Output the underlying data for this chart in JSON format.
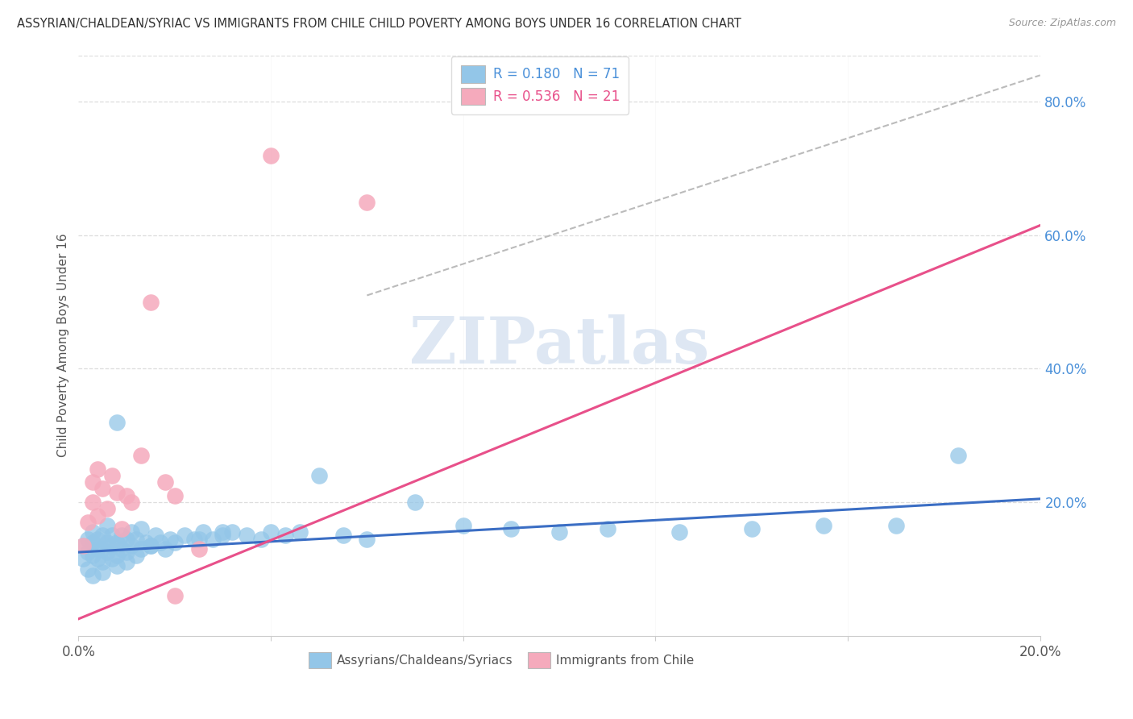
{
  "title": "ASSYRIAN/CHALDEAN/SYRIAC VS IMMIGRANTS FROM CHILE CHILD POVERTY AMONG BOYS UNDER 16 CORRELATION CHART",
  "source": "Source: ZipAtlas.com",
  "ylabel": "Child Poverty Among Boys Under 16",
  "xlim": [
    0.0,
    0.2
  ],
  "ylim": [
    0.0,
    0.87
  ],
  "xtick_vals": [
    0.0,
    0.04,
    0.08,
    0.12,
    0.16,
    0.2
  ],
  "ytick_vals": [
    0.2,
    0.4,
    0.6,
    0.8
  ],
  "blue_R": "0.180",
  "blue_N": "71",
  "pink_R": "0.536",
  "pink_N": "21",
  "blue_color": "#93C6E8",
  "pink_color": "#F5AABC",
  "blue_line_color": "#3B6EC4",
  "pink_line_color": "#E8508A",
  "dash_color": "#BBBBBB",
  "grid_color": "#DDDDDD",
  "watermark_text": "ZIPatlas",
  "watermark_color": "#C8D8EC",
  "right_tick_color": "#4A90D9",
  "legend_label1": "R = 0.180   N = 71",
  "legend_label2": "R = 0.536   N = 21",
  "bottom_label1": "Assyrians/Chaldeans/Syriacs",
  "bottom_label2": "Immigrants from Chile",
  "blue_line_x0": 0.0,
  "blue_line_x1": 0.2,
  "blue_line_y0": 0.125,
  "blue_line_y1": 0.205,
  "pink_line_x0": 0.0,
  "pink_line_x1": 0.2,
  "pink_line_y0": 0.025,
  "pink_line_y1": 0.615,
  "dash_line_x0": 0.06,
  "dash_line_x1": 0.2,
  "dash_line_y0": 0.51,
  "dash_line_y1": 0.84,
  "blue_x": [
    0.001,
    0.001,
    0.002,
    0.002,
    0.002,
    0.003,
    0.003,
    0.003,
    0.003,
    0.004,
    0.004,
    0.004,
    0.005,
    0.005,
    0.005,
    0.005,
    0.006,
    0.006,
    0.006,
    0.007,
    0.007,
    0.007,
    0.008,
    0.008,
    0.008,
    0.009,
    0.009,
    0.01,
    0.01,
    0.01,
    0.011,
    0.011,
    0.012,
    0.012,
    0.013,
    0.013,
    0.014,
    0.015,
    0.016,
    0.017,
    0.018,
    0.019,
    0.02,
    0.022,
    0.024,
    0.026,
    0.028,
    0.03,
    0.032,
    0.035,
    0.038,
    0.04,
    0.043,
    0.046,
    0.05,
    0.055,
    0.06,
    0.07,
    0.08,
    0.09,
    0.1,
    0.11,
    0.125,
    0.14,
    0.155,
    0.17,
    0.183,
    0.03,
    0.025,
    0.015,
    0.008
  ],
  "blue_y": [
    0.135,
    0.115,
    0.145,
    0.125,
    0.1,
    0.14,
    0.12,
    0.155,
    0.09,
    0.13,
    0.115,
    0.145,
    0.11,
    0.13,
    0.15,
    0.095,
    0.125,
    0.14,
    0.165,
    0.135,
    0.115,
    0.15,
    0.12,
    0.14,
    0.105,
    0.13,
    0.15,
    0.125,
    0.145,
    0.11,
    0.135,
    0.155,
    0.12,
    0.145,
    0.13,
    0.16,
    0.14,
    0.135,
    0.15,
    0.14,
    0.13,
    0.145,
    0.14,
    0.15,
    0.145,
    0.155,
    0.145,
    0.15,
    0.155,
    0.15,
    0.145,
    0.155,
    0.15,
    0.155,
    0.24,
    0.15,
    0.145,
    0.2,
    0.165,
    0.16,
    0.155,
    0.16,
    0.155,
    0.16,
    0.165,
    0.165,
    0.27,
    0.155,
    0.145,
    0.135,
    0.32
  ],
  "pink_x": [
    0.001,
    0.002,
    0.003,
    0.003,
    0.004,
    0.004,
    0.005,
    0.006,
    0.007,
    0.008,
    0.009,
    0.01,
    0.011,
    0.013,
    0.015,
    0.018,
    0.02,
    0.025,
    0.04,
    0.06,
    0.02
  ],
  "pink_y": [
    0.135,
    0.17,
    0.2,
    0.23,
    0.25,
    0.18,
    0.22,
    0.19,
    0.24,
    0.215,
    0.16,
    0.21,
    0.2,
    0.27,
    0.5,
    0.23,
    0.21,
    0.13,
    0.72,
    0.65,
    0.06
  ]
}
